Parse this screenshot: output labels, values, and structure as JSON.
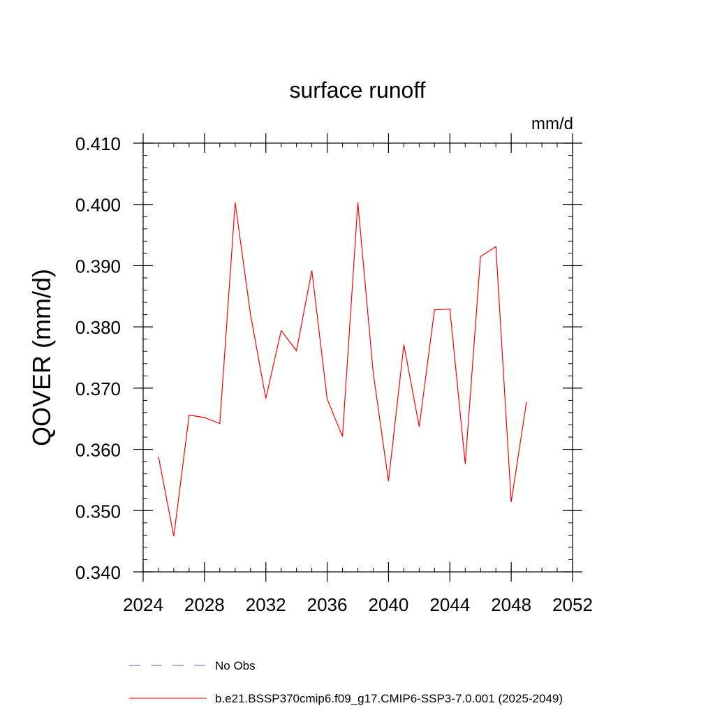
{
  "chart_data": {
    "type": "line",
    "title": "surface runoff",
    "units": "mm/d",
    "ylabel": "QOVER  (mm/d)",
    "xlabel": "",
    "xlim": [
      2024,
      2052
    ],
    "ylim": [
      0.34,
      0.41
    ],
    "x_ticks": [
      "2024",
      "2028",
      "2032",
      "2036",
      "2040",
      "2044",
      "2048",
      "2052"
    ],
    "y_ticks": [
      "0.340",
      "0.350",
      "0.360",
      "0.370",
      "0.380",
      "0.390",
      "0.400",
      "0.410"
    ],
    "grid": false,
    "legend_position": "bottom",
    "series": [
      {
        "name": "b.e21.BSSP370cmip6.f09_g17.CMIP6-SSP3-7.0.001 (2025-2049)",
        "color": "#ff0000",
        "style": "solid",
        "x": [
          2025,
          2026,
          2027,
          2028,
          2029,
          2030,
          2031,
          2032,
          2033,
          2034,
          2035,
          2036,
          2037,
          2038,
          2039,
          2040,
          2041,
          2042,
          2043,
          2044,
          2045,
          2046,
          2047,
          2048,
          2049
        ],
        "values": [
          0.3588,
          0.3458,
          0.3656,
          0.3652,
          0.3642,
          0.4003,
          0.382,
          0.3683,
          0.3794,
          0.3761,
          0.3892,
          0.3682,
          0.3621,
          0.4003,
          0.3725,
          0.3548,
          0.3771,
          0.3637,
          0.3828,
          0.3829,
          0.3576,
          0.3915,
          0.3931,
          0.3514,
          0.3678
        ]
      }
    ],
    "legend": [
      {
        "label": "No Obs",
        "color": "#6a5acd",
        "style": "dashed"
      },
      {
        "label": "b.e21.BSSP370cmip6.f09_g17.CMIP6-SSP3-7.0.001 (2025-2049)",
        "color": "#ff0000",
        "style": "solid"
      }
    ]
  }
}
